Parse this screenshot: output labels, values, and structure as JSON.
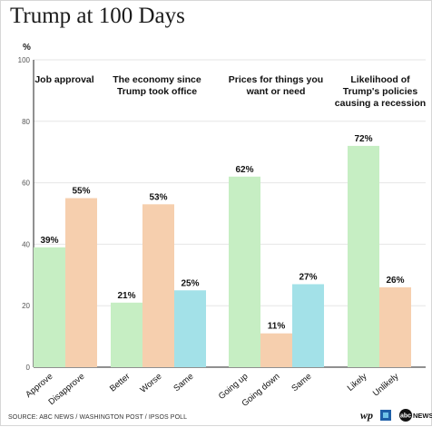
{
  "title": "Trump at 100 Days",
  "unit_label": "%",
  "source": "SOURCE: ABC NEWS / WASHINGTON POST / IPSOS POLL",
  "logos": {
    "wp": "wp",
    "abc": "abc",
    "abc_news": "NEWS"
  },
  "colors": {
    "green": "#c6eec3",
    "peach": "#f6cfae",
    "cyan": "#a3e1e8",
    "axis": "#222222",
    "grid": "#e6e6e6"
  },
  "chart_data": {
    "type": "bar",
    "title": "Trump at 100 Days",
    "ylabel": "%",
    "ylim": [
      0,
      100
    ],
    "yticks": [
      0,
      20,
      40,
      60,
      80,
      100
    ],
    "grid": true,
    "panels": [
      {
        "title_lines": [
          "Job approval"
        ],
        "categories": [
          "Approve",
          "Disapprove"
        ],
        "values": [
          39,
          55
        ],
        "colors": [
          "#c6eec3",
          "#f6cfae"
        ]
      },
      {
        "title_lines": [
          "The economy since",
          "Trump took office"
        ],
        "categories": [
          "Better",
          "Worse",
          "Same"
        ],
        "values": [
          21,
          53,
          25
        ],
        "colors": [
          "#c6eec3",
          "#f6cfae",
          "#a3e1e8"
        ]
      },
      {
        "title_lines": [
          "Prices for things you",
          "want or need"
        ],
        "categories": [
          "Going up",
          "Going down",
          "Same"
        ],
        "values": [
          62,
          11,
          27
        ],
        "colors": [
          "#c6eec3",
          "#f6cfae",
          "#a3e1e8"
        ]
      },
      {
        "title_lines": [
          "Likelihood of",
          "Trump's policies",
          "causing a recession"
        ],
        "categories": [
          "Likely",
          "Unlikely"
        ],
        "values": [
          72,
          26
        ],
        "colors": [
          "#c6eec3",
          "#f6cfae"
        ]
      }
    ]
  }
}
